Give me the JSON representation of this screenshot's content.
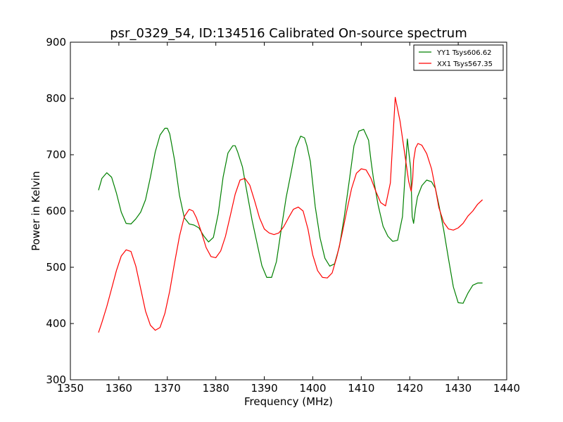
{
  "chart_data": {
    "type": "line",
    "title": "psr_0329_54, ID:134516 Calibrated On-source spectrum",
    "xlabel": "Frequency (MHz)",
    "ylabel": "Power in Kelvin",
    "xlim": [
      1350,
      1440
    ],
    "ylim": [
      300,
      900
    ],
    "xticks": [
      1350,
      1360,
      1370,
      1380,
      1390,
      1400,
      1410,
      1420,
      1430,
      1440
    ],
    "yticks": [
      300,
      400,
      500,
      600,
      700,
      800,
      900
    ],
    "grid": false,
    "legend_placement": "top-right",
    "series": [
      {
        "name": "YY1 Tsys606.62",
        "color": "#008000",
        "x": [
          1355.8,
          1356.5,
          1357.5,
          1358.5,
          1359.5,
          1360.5,
          1361.5,
          1362.5,
          1363.5,
          1364.5,
          1365.5,
          1366.5,
          1367.5,
          1368.5,
          1369.5,
          1370.0,
          1370.5,
          1371.5,
          1372.5,
          1373.5,
          1374.5,
          1375.5,
          1376.5,
          1377.5,
          1378.5,
          1379.5,
          1380.5,
          1381.5,
          1382.5,
          1383.5,
          1384.0,
          1384.5,
          1385.5,
          1386.5,
          1387.5,
          1388.5,
          1389.5,
          1390.5,
          1391.5,
          1392.5,
          1393.5,
          1394.5,
          1395.5,
          1396.5,
          1397.5,
          1398.3,
          1398.8,
          1399.5,
          1400.5,
          1401.5,
          1402.5,
          1403.5,
          1404.5,
          1405.5,
          1406.5,
          1407.5,
          1408.5,
          1409.5,
          1410.5,
          1411.5,
          1412.0,
          1412.5,
          1413.5,
          1414.5,
          1415.5,
          1416.5,
          1417.5,
          1418.5,
          1419.5,
          1420.2,
          1420.5,
          1420.8,
          1421.2,
          1421.6,
          1422.5,
          1423.5,
          1424.5,
          1425.3,
          1426.0,
          1427.0,
          1428.0,
          1429.0,
          1430.0,
          1431.0,
          1432.0,
          1433.0,
          1434.0,
          1435.0
        ],
        "values": [
          637,
          658,
          668,
          660,
          632,
          598,
          578,
          577,
          586,
          598,
          620,
          660,
          705,
          735,
          747,
          747,
          737,
          690,
          628,
          588,
          577,
          575,
          570,
          556,
          545,
          553,
          595,
          660,
          703,
          716,
          716,
          705,
          678,
          630,
          583,
          543,
          503,
          482,
          482,
          510,
          568,
          624,
          667,
          712,
          733,
          730,
          716,
          688,
          608,
          552,
          516,
          502,
          506,
          537,
          590,
          652,
          716,
          742,
          745,
          726,
          690,
          658,
          610,
          573,
          555,
          546,
          548,
          590,
          728,
          675,
          590,
          578,
          605,
          625,
          645,
          655,
          652,
          640,
          611,
          567,
          515,
          465,
          437,
          436,
          454,
          468,
          472,
          472
        ]
      },
      {
        "name": "XX1 Tsys567.35",
        "color": "#ff0000",
        "x": [
          1355.8,
          1356.5,
          1357.5,
          1358.5,
          1359.5,
          1360.5,
          1361.5,
          1362.5,
          1363.5,
          1364.5,
          1365.5,
          1366.5,
          1367.5,
          1368.5,
          1369.5,
          1370.5,
          1371.5,
          1372.5,
          1373.5,
          1374.5,
          1375.3,
          1376.0,
          1377.0,
          1378.0,
          1379.0,
          1380.0,
          1381.0,
          1382.0,
          1383.0,
          1384.0,
          1385.0,
          1386.0,
          1387.0,
          1388.0,
          1389.0,
          1390.0,
          1391.0,
          1392.0,
          1393.0,
          1394.0,
          1395.0,
          1396.0,
          1397.0,
          1398.0,
          1399.0,
          1400.0,
          1401.0,
          1402.0,
          1403.0,
          1404.0,
          1405.0,
          1406.0,
          1407.0,
          1408.0,
          1409.0,
          1410.0,
          1411.0,
          1412.0,
          1413.0,
          1414.0,
          1415.0,
          1416.0,
          1417.0,
          1418.0,
          1419.0,
          1419.8,
          1420.3,
          1420.6,
          1420.8,
          1421.2,
          1421.7,
          1422.5,
          1423.5,
          1424.5,
          1425.3,
          1426.0,
          1427.0,
          1428.0,
          1429.0,
          1430.0,
          1431.0,
          1432.0,
          1433.0,
          1434.0,
          1435.0
        ],
        "values": [
          384,
          402,
          430,
          462,
          494,
          520,
          531,
          528,
          502,
          462,
          422,
          397,
          388,
          393,
          418,
          458,
          508,
          555,
          590,
          603,
          600,
          588,
          563,
          535,
          519,
          517,
          529,
          555,
          592,
          630,
          655,
          658,
          646,
          618,
          588,
          568,
          561,
          558,
          561,
          572,
          588,
          603,
          607,
          600,
          568,
          522,
          494,
          482,
          481,
          490,
          520,
          558,
          600,
          640,
          667,
          675,
          673,
          658,
          635,
          615,
          609,
          650,
          802,
          760,
          700,
          652,
          635,
          657,
          690,
          712,
          720,
          717,
          702,
          675,
          640,
          606,
          580,
          568,
          566,
          570,
          578,
          591,
          600,
          612,
          620
        ]
      }
    ]
  }
}
